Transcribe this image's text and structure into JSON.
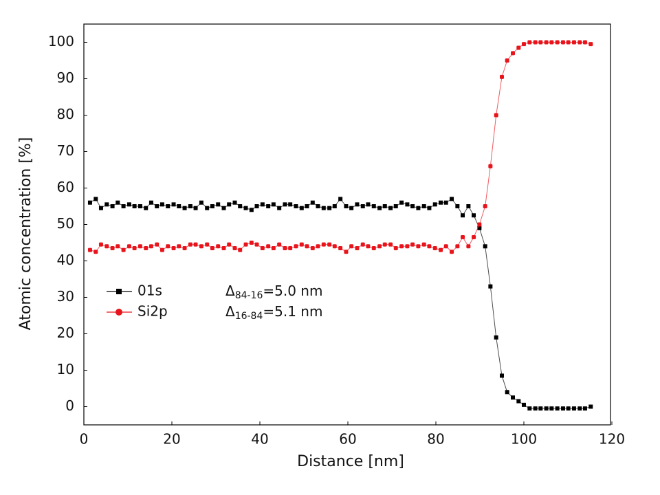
{
  "chart_data": {
    "type": "line",
    "x_label": "Distance [nm]",
    "y_label": "Atomic concentration [%]",
    "xlim": [
      0,
      120
    ],
    "xticks": [
      0,
      20,
      40,
      60,
      80,
      100,
      120
    ],
    "ylim": [
      -5,
      105
    ],
    "yticks": [
      0,
      10,
      20,
      30,
      40,
      50,
      60,
      70,
      80,
      90,
      100
    ],
    "x": [
      1.4,
      2.7,
      3.9,
      5.2,
      6.5,
      7.7,
      9.0,
      10.3,
      11.5,
      12.8,
      14.1,
      15.3,
      16.6,
      17.8,
      19.1,
      20.4,
      21.6,
      22.9,
      24.2,
      25.4,
      26.7,
      28.0,
      29.2,
      30.5,
      31.8,
      33.0,
      34.3,
      35.5,
      36.8,
      38.1,
      39.3,
      40.6,
      41.9,
      43.1,
      44.4,
      45.7,
      46.9,
      48.2,
      49.5,
      50.7,
      52.0,
      53.2,
      54.5,
      55.8,
      57.0,
      58.3,
      59.6,
      60.8,
      62.1,
      63.4,
      64.6,
      65.9,
      67.2,
      68.4,
      69.7,
      70.9,
      72.2,
      73.5,
      74.7,
      76.0,
      77.3,
      78.5,
      79.8,
      81.1,
      82.3,
      83.6,
      84.9,
      86.1,
      87.4,
      88.6,
      89.9,
      91.2,
      92.4,
      93.7,
      95.0,
      96.2,
      97.5,
      98.8,
      100.0,
      101.3,
      102.6,
      103.8,
      105.1,
      106.3,
      107.6,
      108.9,
      110.1,
      111.4,
      112.7,
      113.9,
      115.2
    ],
    "series": [
      {
        "name": "01s",
        "color": "#000000",
        "marker": "square",
        "values": [
          56,
          57,
          54.5,
          55.5,
          55,
          56,
          55,
          55.5,
          55,
          55,
          54.5,
          56,
          55,
          55.5,
          55,
          55.5,
          55,
          54.5,
          55,
          54.5,
          56,
          54.5,
          55,
          55.5,
          54.5,
          55.5,
          56,
          55,
          54.5,
          54,
          55,
          55.5,
          55,
          55.5,
          54.5,
          55.5,
          55.5,
          55,
          54.5,
          55,
          56,
          55,
          54.5,
          54.5,
          55,
          57,
          55,
          54.5,
          55.5,
          55,
          55.5,
          55,
          54.5,
          55,
          54.5,
          55,
          56,
          55.5,
          55,
          54.5,
          55,
          54.5,
          55.5,
          56,
          56,
          57,
          55,
          52.5,
          55,
          52.5,
          49,
          44,
          33,
          19,
          8.5,
          4,
          2.5,
          1.5,
          0.5,
          -0.5,
          -0.5,
          -0.5,
          -0.5,
          -0.5,
          -0.5,
          -0.5,
          -0.5,
          -0.5,
          -0.5,
          -0.5,
          0
        ]
      },
      {
        "name": "Si2p",
        "color": "#e8141b",
        "marker": "circle",
        "values": [
          43,
          42.5,
          44.5,
          44,
          43.5,
          44,
          43,
          44,
          43.5,
          44,
          43.5,
          44,
          44.5,
          43,
          44,
          43.5,
          44,
          43.5,
          44.5,
          44.5,
          44,
          44.5,
          43.5,
          44,
          43.5,
          44.5,
          43.5,
          43,
          44.5,
          45,
          44.5,
          43.5,
          44,
          43.5,
          44.5,
          43.5,
          43.5,
          44,
          44.5,
          44,
          43.5,
          44,
          44.5,
          44.5,
          44,
          43.5,
          42.5,
          44,
          43.5,
          44.5,
          44,
          43.5,
          44,
          44.5,
          44.5,
          43.5,
          44,
          44,
          44.5,
          44,
          44.5,
          44,
          43.5,
          43,
          44,
          42.5,
          44,
          46.5,
          44,
          46.5,
          50,
          55,
          66,
          80,
          90.5,
          95,
          97,
          98.5,
          99.5,
          100,
          100,
          100,
          100,
          100,
          100,
          100,
          100,
          100,
          100,
          100,
          99.5
        ]
      }
    ],
    "annotations": [
      {
        "symbol": "Δ",
        "sub": "84-16",
        "text": "=5.0 nm"
      },
      {
        "symbol": "Δ",
        "sub": "16-84",
        "text": "=5.1 nm"
      }
    ]
  }
}
